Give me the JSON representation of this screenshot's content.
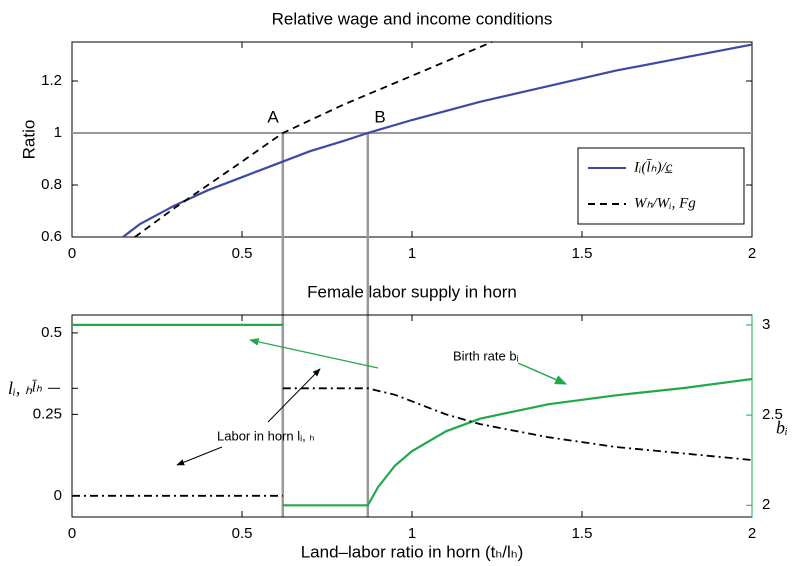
{
  "chart_data": [
    {
      "type": "line",
      "title": "Relative wage and income conditions",
      "ylabel": "Ratio",
      "xlim": [
        0,
        2
      ],
      "ylim": [
        0.6,
        1.35
      ],
      "xticks": [
        0,
        0.5,
        1,
        1.5,
        2
      ],
      "yticks": [
        0.6,
        0.8,
        1,
        1.2
      ],
      "hline": 1,
      "vlines": [
        0.62,
        0.87
      ],
      "annotations": [
        "A",
        "B"
      ],
      "legend": "lower right",
      "grid": false,
      "series": [
        {
          "name": "Iᵢ(l̄ₕ)/c̲",
          "color": "#3a4aa6",
          "style": "solid",
          "x": [
            0.15,
            0.2,
            0.3,
            0.4,
            0.5,
            0.6,
            0.7,
            0.8,
            0.87,
            1,
            1.2,
            1.4,
            1.6,
            1.8,
            2
          ],
          "values": [
            0.6,
            0.65,
            0.72,
            0.78,
            0.83,
            0.88,
            0.93,
            0.97,
            1.0,
            1.05,
            1.12,
            1.18,
            1.24,
            1.29,
            1.34
          ]
        },
        {
          "name": "Wₕ/Wᵢ, Fg",
          "color": "#000000",
          "style": "dashed",
          "x": [
            0.185,
            0.3,
            0.4,
            0.5,
            0.62,
            0.8,
            1.0,
            1.235
          ],
          "values": [
            0.6,
            0.71,
            0.8,
            0.89,
            1.0,
            1.11,
            1.22,
            1.35
          ]
        }
      ]
    },
    {
      "type": "line",
      "title": "Female labor supply in horn",
      "xlabel": "Land–labor ratio in horn (tₕ/lₕ)",
      "ylabel": "lᵢ, ₕ",
      "y2label": "bᵢ",
      "xlim": [
        0,
        2
      ],
      "ylim": [
        -0.065,
        0.555
      ],
      "y2lim": [
        1.935,
        3.055
      ],
      "xticks": [
        0,
        0.5,
        1,
        1.5,
        2
      ],
      "yticks": [
        0,
        0.25,
        {
          "value": 0.33,
          "label": "l̄ₕ"
        },
        0.5
      ],
      "y2ticks": [
        2,
        2.5,
        3
      ],
      "annotations": [
        "Birth rate bᵢ",
        "Labor in horn lᵢ, ₕ"
      ],
      "grid": false,
      "series": [
        {
          "color": "#22a84a",
          "style": "solid",
          "axis": "y2",
          "x": [
            0,
            0.62,
            0.62,
            0.62,
            0.87,
            0.9,
            0.95,
            1.0,
            1.1,
            1.2,
            1.4,
            1.6,
            1.8,
            2
          ],
          "values": [
            3,
            3,
            null,
            2,
            2,
            2.1,
            2.22,
            2.3,
            2.41,
            2.48,
            2.56,
            2.61,
            2.65,
            2.7
          ]
        },
        {
          "color": "#000000",
          "style": "dashdot",
          "x": [
            0,
            0.62,
            0.62,
            0.62,
            0.87,
            0.95,
            1.0,
            1.1,
            1.2,
            1.4,
            1.5,
            1.6,
            1.8,
            2
          ],
          "values": [
            0,
            0,
            null,
            0.33,
            0.33,
            0.31,
            0.29,
            0.25,
            0.22,
            0.18,
            0.165,
            0.15,
            0.13,
            0.11
          ]
        }
      ]
    }
  ]
}
